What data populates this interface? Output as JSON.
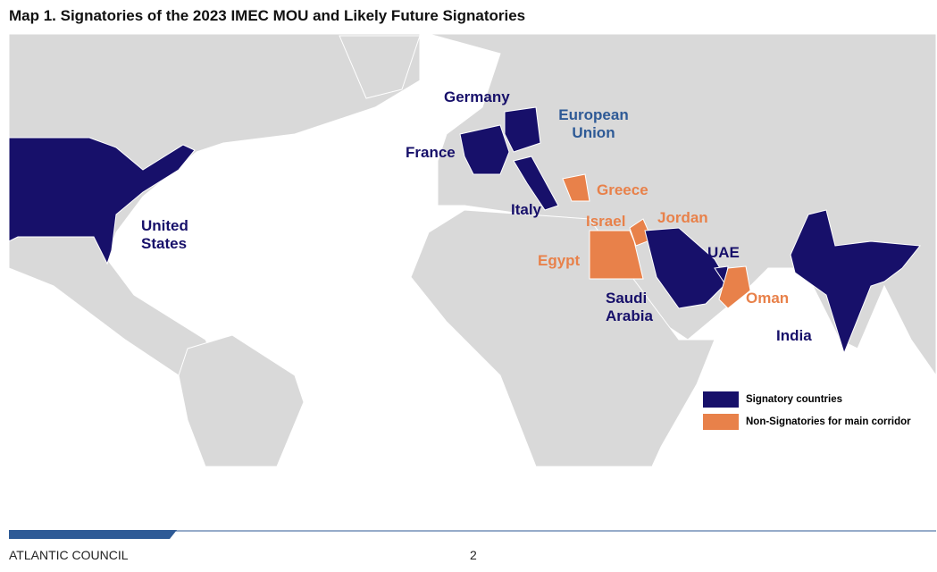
{
  "title": "Map 1. Signatories of the 2023 IMEC MOU and Likely Future Signatories",
  "labels": [
    {
      "text": "Germany",
      "group": "signatory"
    },
    {
      "text": "European Union",
      "group": "union"
    },
    {
      "text": "France",
      "group": "signatory"
    },
    {
      "text": "United States",
      "group": "signatory"
    },
    {
      "text": "Italy",
      "group": "signatory"
    },
    {
      "text": "Greece",
      "group": "non-signatory"
    },
    {
      "text": "Israel",
      "group": "non-signatory"
    },
    {
      "text": "Jordan",
      "group": "non-signatory"
    },
    {
      "text": "Egypt",
      "group": "non-signatory"
    },
    {
      "text": "UAE",
      "group": "signatory"
    },
    {
      "text": "Saudi Arabia",
      "group": "signatory"
    },
    {
      "text": "Oman",
      "group": "non-signatory"
    },
    {
      "text": "India",
      "group": "signatory"
    }
  ],
  "legend": [
    {
      "label": "Signatory countries",
      "color": "#17106a"
    },
    {
      "label": "Non-Signatories for main corridor",
      "color": "#e8814a"
    }
  ],
  "footer": {
    "org": "ATLANTIC COUNCIL",
    "page": "2"
  }
}
